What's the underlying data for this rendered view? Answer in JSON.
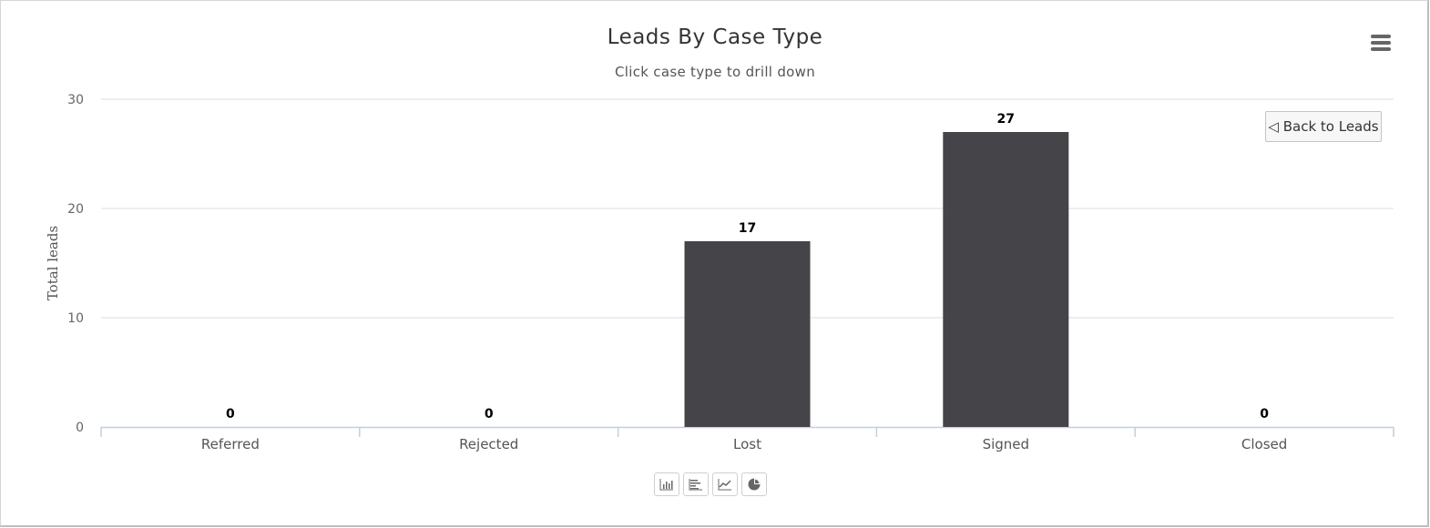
{
  "header": {
    "title": "Leads By Case Type",
    "subtitle": "Click case type to drill down"
  },
  "controls": {
    "back_label": "◁ Back to Leads",
    "menu_icon": "hamburger-menu-icon",
    "toolbar_icons": [
      "bar-chart-icon",
      "horizontal-bar-chart-icon",
      "line-chart-icon",
      "pie-chart-icon"
    ]
  },
  "chart_data": {
    "type": "bar",
    "title": "Leads By Case Type",
    "subtitle": "Click case type to drill down",
    "xlabel": "",
    "ylabel": "Total leads",
    "categories": [
      "Referred",
      "Rejected",
      "Lost",
      "Signed",
      "Closed"
    ],
    "values": [
      0,
      0,
      17,
      27,
      0
    ],
    "ylim": [
      0,
      30
    ],
    "yticks": [
      0,
      10,
      20,
      30
    ],
    "grid": true,
    "legend": "none",
    "bar_color": "#454449",
    "data_labels": true
  }
}
